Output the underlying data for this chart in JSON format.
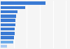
{
  "values": [
    690,
    370,
    255,
    235,
    225,
    220,
    215,
    210,
    205,
    195,
    100
  ],
  "bar_colors": [
    "#3a7ad4",
    "#3a7ad4",
    "#3a7ad4",
    "#3a7ad4",
    "#3a7ad4",
    "#3a7ad4",
    "#3a7ad4",
    "#3a7ad4",
    "#3a7ad4",
    "#6aaae8",
    "#aaccf4"
  ],
  "background_color": "#f5f5f5",
  "plot_bg_color": "#f5f5f5",
  "xlim_max": 1050,
  "bar_height": 0.72,
  "grid_color": "#ffffff",
  "figsize": [
    1.0,
    0.71
  ],
  "dpi": 100
}
